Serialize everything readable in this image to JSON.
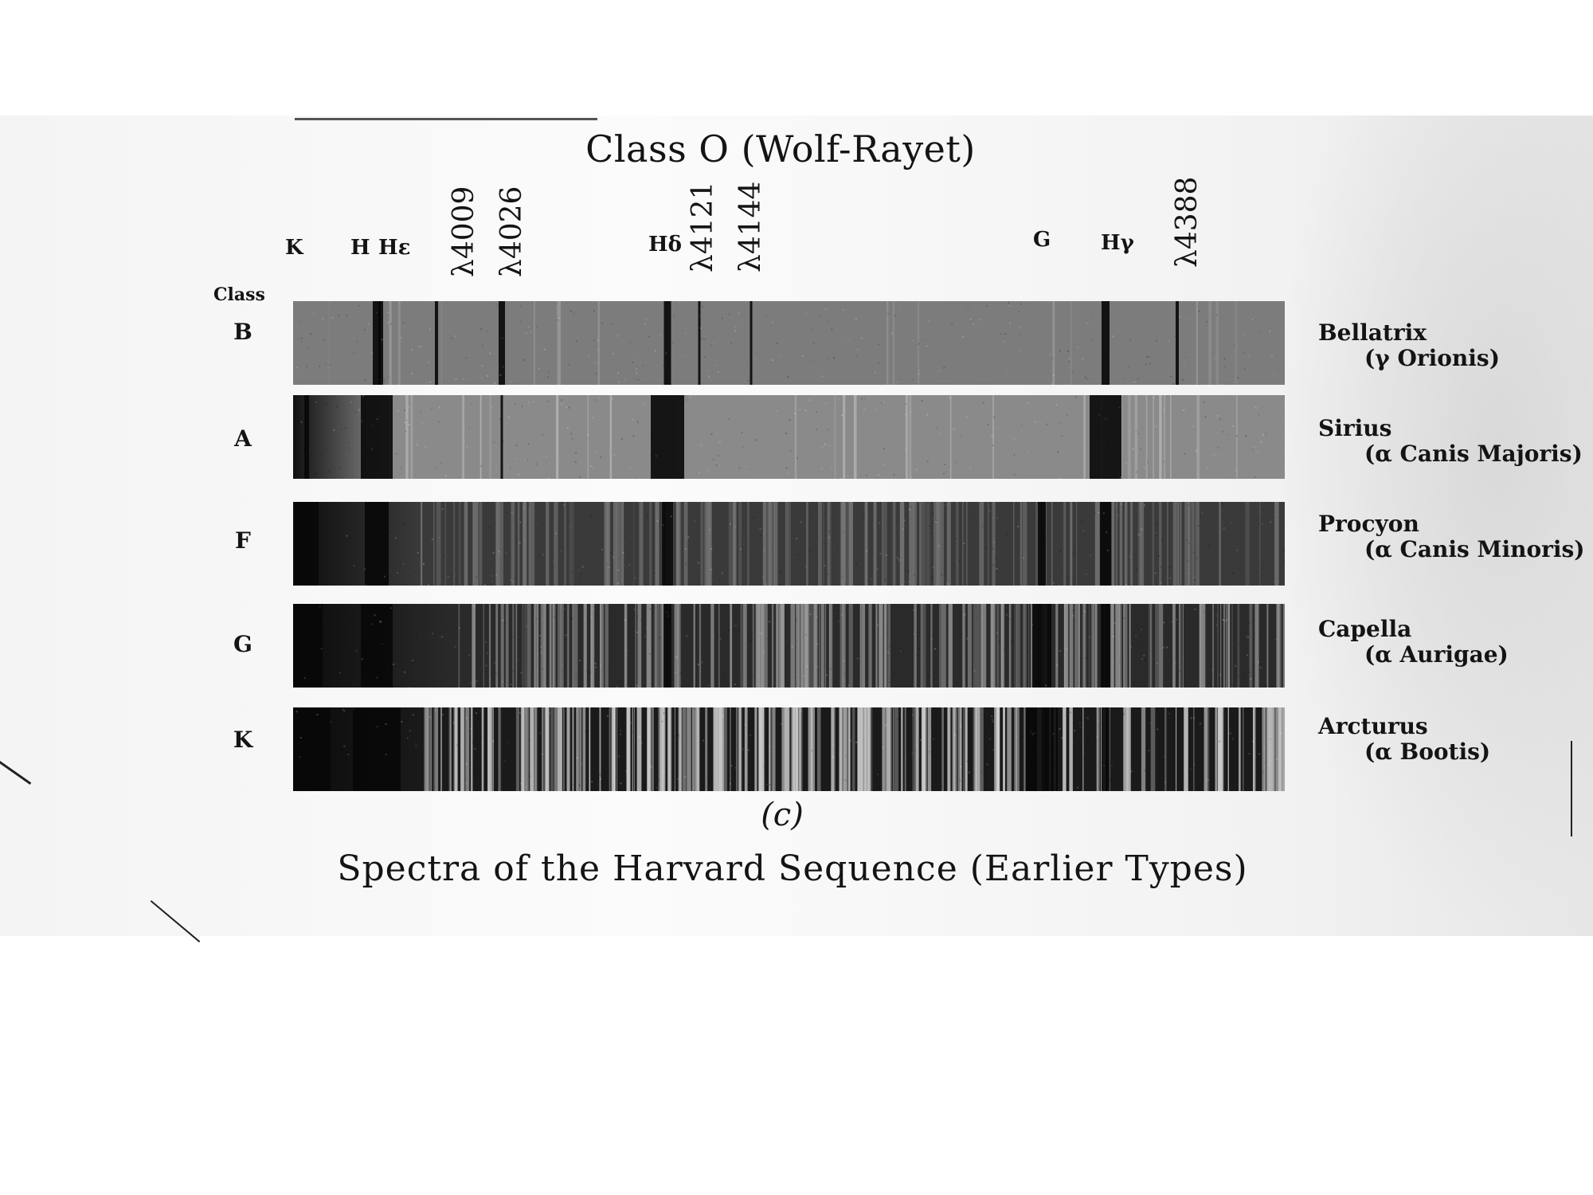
{
  "title": "Class O (Wolf-Rayet)",
  "class_header": "Class",
  "line_labels_upright": [
    {
      "label": "K"
    },
    {
      "label": "H"
    },
    {
      "label": "Hε"
    },
    {
      "label": "Hδ"
    },
    {
      "label": "G"
    },
    {
      "label": "Hγ"
    }
  ],
  "line_labels_rotated": [
    {
      "label": "λ4009"
    },
    {
      "label": "λ4026"
    },
    {
      "label": "λ4121"
    },
    {
      "label": "λ4144"
    },
    {
      "label": "λ4388"
    }
  ],
  "spectra": [
    {
      "class": "B",
      "star": "Bellatrix",
      "designation": "(γ Orionis)"
    },
    {
      "class": "A",
      "star": "Sirius",
      "designation": "(α Canis Majoris)"
    },
    {
      "class": "F",
      "star": "Procyon",
      "designation": "(α Canis Minoris)"
    },
    {
      "class": "G",
      "star": "Capella",
      "designation": "(α Aurigae)"
    },
    {
      "class": "K",
      "star": "Arcturus",
      "designation": "(α Bootis)"
    }
  ],
  "subfigure": "(c)",
  "caption": "Spectra of the Harvard Sequence (Earlier Types)"
}
